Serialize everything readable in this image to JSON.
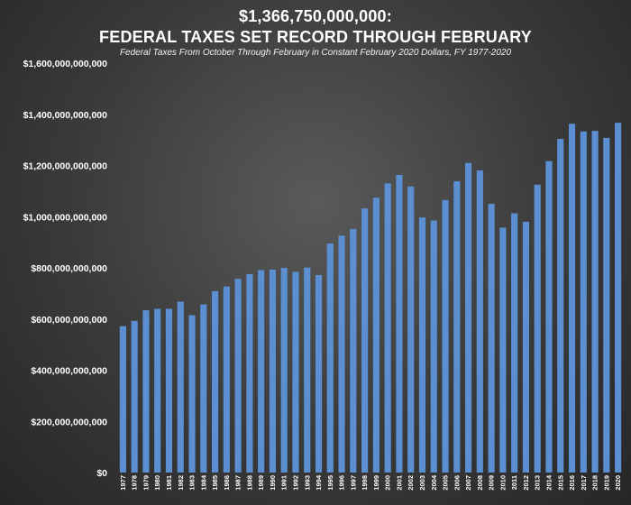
{
  "chart_data": {
    "type": "bar",
    "title": "$1,366,750,000,000:",
    "title_line2": "FEDERAL TAXES SET RECORD THROUGH FEBRUARY",
    "subtitle": "Federal Taxes From October Through February in Constant February 2020 Dollars, FY 1977-2020",
    "xlabel": "",
    "ylabel": "",
    "ylim": [
      0,
      1600000000000
    ],
    "yticks": [
      0,
      200000000000,
      400000000000,
      600000000000,
      800000000000,
      1000000000000,
      1200000000000,
      1400000000000,
      1600000000000
    ],
    "ytick_labels": [
      "$0",
      "$200,000,000,000",
      "$400,000,000,000",
      "$600,000,000,000",
      "$800,000,000,000",
      "$1,000,000,000,000",
      "$1,200,000,000,000",
      "$1,400,000,000,000",
      "$1,600,000,000,000"
    ],
    "grid": false,
    "bar_color": "#5b8fd1",
    "categories": [
      "1977",
      "1978",
      "1979",
      "1980",
      "1981",
      "1982",
      "1983",
      "1984",
      "1985",
      "1986",
      "1987",
      "1988",
      "1989",
      "1990",
      "1991",
      "1992",
      "1993",
      "1994",
      "1995",
      "1996",
      "1997",
      "1998",
      "1999",
      "2000",
      "2001",
      "2002",
      "2003",
      "2004",
      "2005",
      "2006",
      "2007",
      "2008",
      "2009",
      "2010",
      "2011",
      "2012",
      "2013",
      "2014",
      "2015",
      "2016",
      "2017",
      "2018",
      "2019",
      "2020"
    ],
    "values": [
      572000000000,
      593000000000,
      634000000000,
      640000000000,
      640000000000,
      668000000000,
      615000000000,
      657000000000,
      709000000000,
      727000000000,
      757000000000,
      775000000000,
      791000000000,
      793000000000,
      800000000000,
      784000000000,
      801000000000,
      772000000000,
      895000000000,
      926000000000,
      952000000000,
      1032000000000,
      1074000000000,
      1130000000000,
      1163000000000,
      1118000000000,
      997000000000,
      985000000000,
      1065000000000,
      1138000000000,
      1210000000000,
      1181000000000,
      1050000000000,
      957000000000,
      1013000000000,
      980000000000,
      1125000000000,
      1217000000000,
      1304000000000,
      1363000000000,
      1333000000000,
      1335000000000,
      1308000000000,
      1366750000000
    ]
  }
}
